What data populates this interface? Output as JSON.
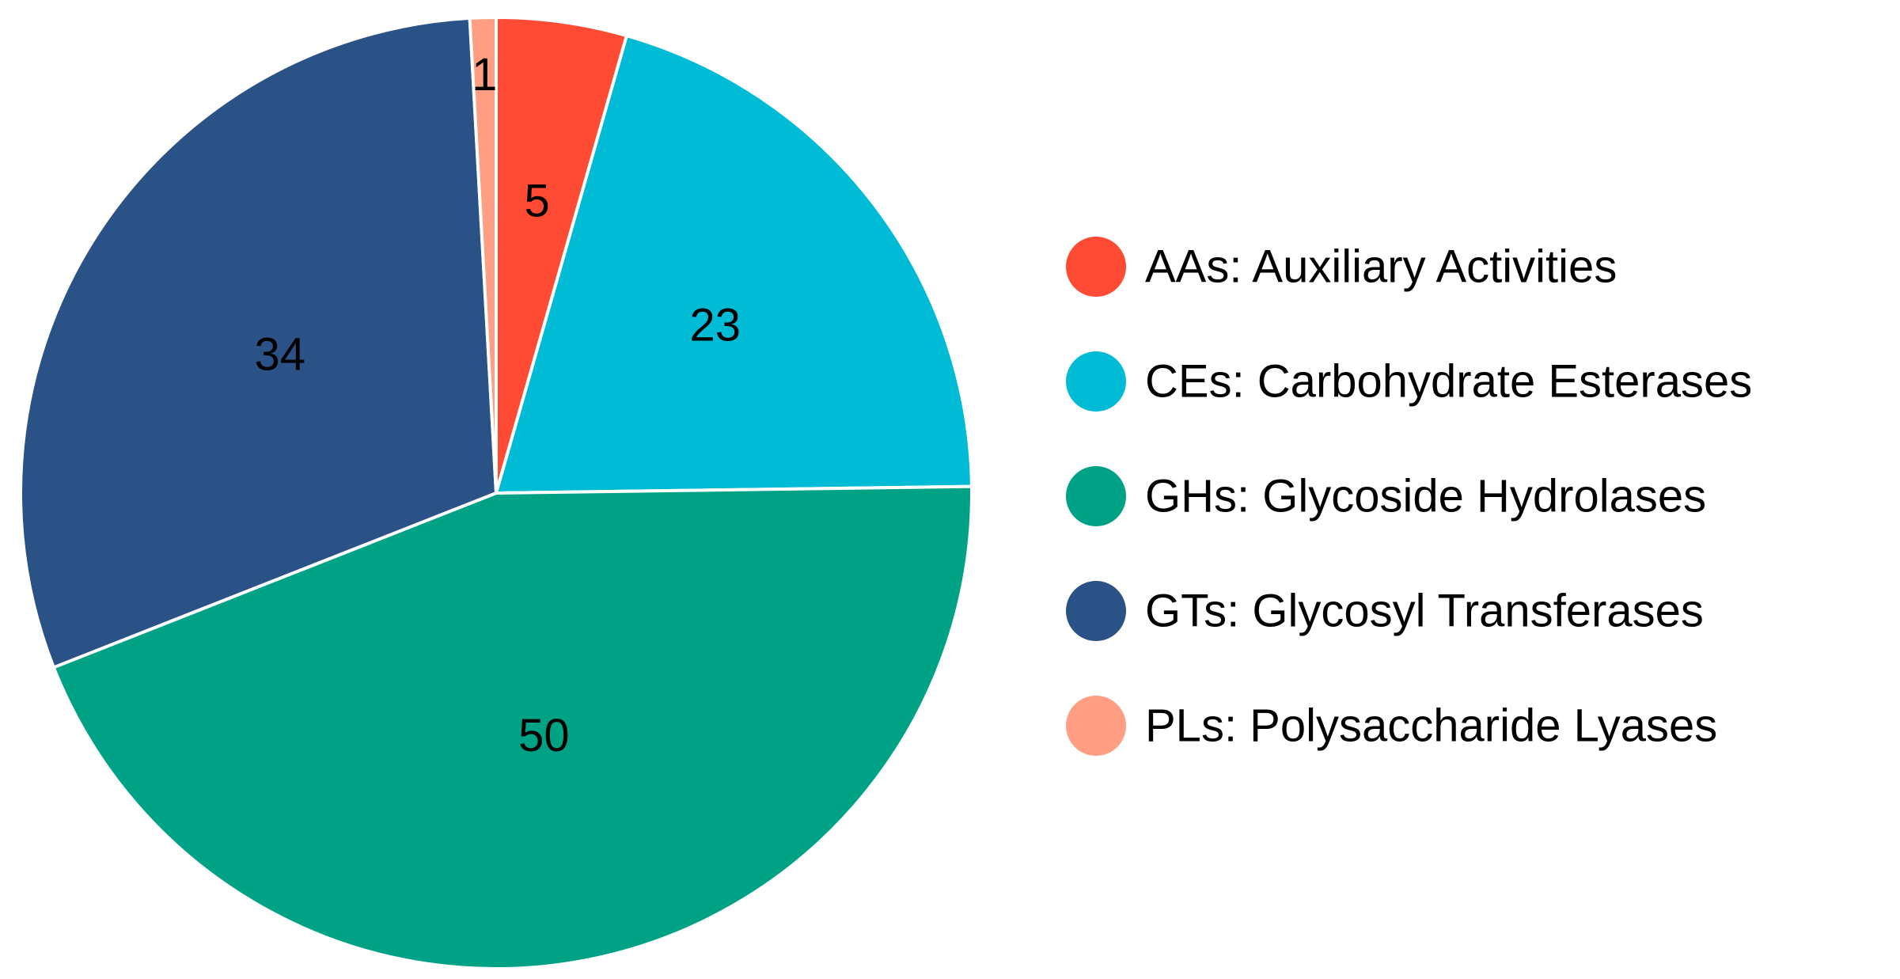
{
  "chart_data": {
    "type": "pie",
    "start_angle": "12 o'clock, clockwise",
    "legend_position": "right",
    "slices": [
      {
        "label": "AAs: Auxiliary Activities",
        "value": 5,
        "value_label": "5",
        "color": "#FF4B33"
      },
      {
        "label": "CEs: Carbohydrate Esterases",
        "value": 23,
        "value_label": "23",
        "color": "#00BBD6"
      },
      {
        "label": "GHs: Glycoside Hydrolases",
        "value": 50,
        "value_label": "50",
        "color": "#00A286"
      },
      {
        "label": "GTs: Glycosyl Transferases",
        "value": 34,
        "value_label": "34",
        "color": "#2A5287"
      },
      {
        "label": "PLs: Polysaccharide Lyases",
        "value": 1,
        "value_label": "1",
        "color": "#FF9E82"
      }
    ]
  }
}
